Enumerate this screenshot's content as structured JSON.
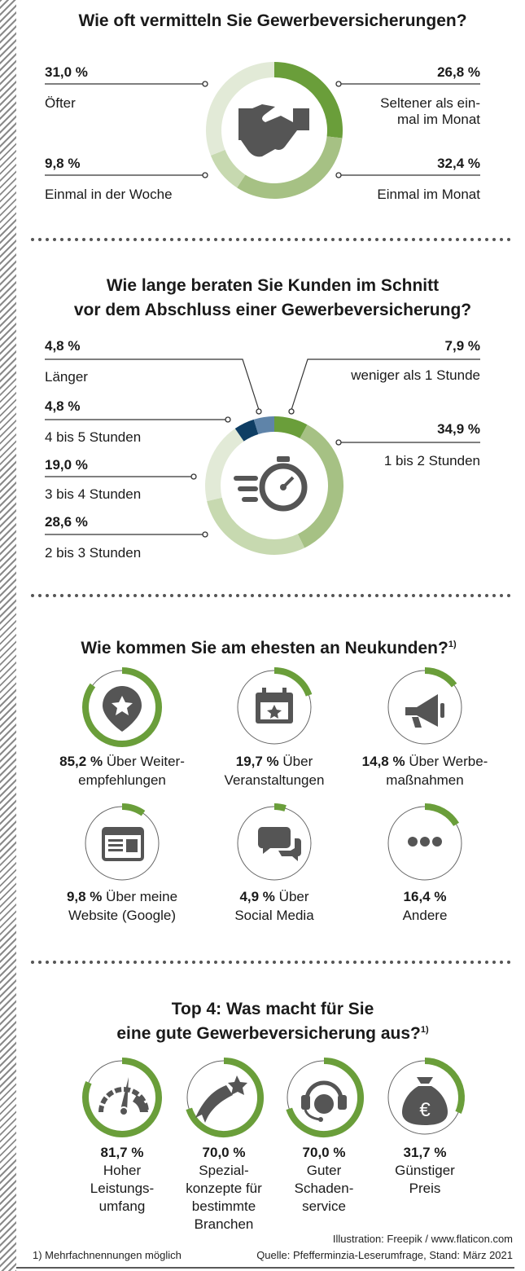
{
  "colors": {
    "green": "#6a9e3a",
    "medium": "#a6c184",
    "light": "#c7d9b0",
    "pale": "#e2ead7",
    "navy": "#0f3e64",
    "steel": "#5f84a9",
    "icon": "#555555"
  },
  "chart_data": [
    {
      "type": "pie",
      "title": "Wie oft vermitteln Sie Gewerbeversicherungen?",
      "segments": [
        {
          "label": "Seltener als ein-mal im Monat",
          "label_lines": [
            "Seltener als ein-",
            "mal im Monat"
          ],
          "value": 26.8,
          "value_text": "26,8 %",
          "color": "#6a9e3a"
        },
        {
          "label": "Einmal im Monat",
          "value": 32.4,
          "value_text": "32,4 %",
          "color": "#a6c184"
        },
        {
          "label": "Einmal in der Woche",
          "value": 9.8,
          "value_text": "9,8 %",
          "color": "#c7d9b0"
        },
        {
          "label": "Öfter",
          "value": 31.0,
          "value_text": "31,0 %",
          "color": "#e2ead7"
        }
      ]
    },
    {
      "type": "pie",
      "title_lines": [
        "Wie lange beraten Sie Kunden im Schnitt",
        "vor dem Abschluss einer Gewerbeversicherung?"
      ],
      "segments": [
        {
          "label": "weniger als 1 Stunde",
          "value": 7.9,
          "value_text": "7,9 %",
          "color": "#6a9e3a"
        },
        {
          "label": "1 bis 2 Stunden",
          "value": 34.9,
          "value_text": "34,9 %",
          "color": "#a6c184"
        },
        {
          "label": "2 bis 3 Stunden",
          "value": 28.6,
          "value_text": "28,6 %",
          "color": "#c7d9b0"
        },
        {
          "label": "3 bis 4 Stunden",
          "value": 19.0,
          "value_text": "19,0 %",
          "color": "#e2ead7"
        },
        {
          "label": "4 bis 5 Stunden",
          "value": 4.8,
          "value_text": "4,8 %",
          "color": "#0f3e64"
        },
        {
          "label": "Länger",
          "value": 4.8,
          "value_text": "4,8 %",
          "color": "#5f84a9"
        }
      ]
    },
    {
      "type": "bar",
      "title": "Wie kommen Sie am ehesten an Neukunden?",
      "title_sup": "1)",
      "items": [
        {
          "icon": "map-pin-star-icon",
          "value": 85.2,
          "value_text": "85,2 %",
          "lines": [
            "Über Weiter-",
            "empfehlungen"
          ]
        },
        {
          "icon": "calendar-star-icon",
          "value": 19.7,
          "value_text": "19,7 %",
          "lines": [
            "Über",
            "Veranstaltungen"
          ]
        },
        {
          "icon": "megaphone-icon",
          "value": 14.8,
          "value_text": "14,8 %",
          "lines": [
            "Über Werbe-",
            "maßnahmen"
          ]
        },
        {
          "icon": "browser-window-icon",
          "value": 9.8,
          "value_text": "9,8 %",
          "lines": [
            "Über meine",
            "Website (Google)"
          ]
        },
        {
          "icon": "chat-bubbles-icon",
          "value": 4.9,
          "value_text": "4,9 %",
          "lines": [
            "Über",
            "Social Media"
          ]
        },
        {
          "icon": "ellipsis-icon",
          "value": 16.4,
          "value_text": "16,4 %",
          "lines": [
            "",
            "Andere"
          ]
        }
      ]
    },
    {
      "type": "bar",
      "title_lines": [
        "Top 4: Was macht für Sie",
        "eine gute Gewerbeversicherung aus?"
      ],
      "title_sup": "1)",
      "items": [
        {
          "icon": "speedometer-icon",
          "value": 81.7,
          "value_text": "81,7 %",
          "lines": [
            "Hoher",
            "Leistungs-",
            "umfang"
          ]
        },
        {
          "icon": "shooting-star-icon",
          "value": 70.0,
          "value_text": "70,0 %",
          "lines": [
            "Spezial-",
            "konzepte für",
            "bestimmte",
            "Branchen"
          ]
        },
        {
          "icon": "headset-icon",
          "value": 70.0,
          "value_text": "70,0 %",
          "lines": [
            "Guter",
            "Schaden-",
            "service"
          ]
        },
        {
          "icon": "money-bag-euro-icon",
          "value": 31.7,
          "value_text": "31,7 %",
          "lines": [
            "Günstiger",
            "Preis"
          ]
        }
      ]
    }
  ],
  "footer": {
    "note": "1) Mehrfachnennungen möglich",
    "credit": "Illustration: Freepik / www.flaticon.com",
    "source": "Quelle: Pfefferminzia-Leserumfrage, Stand: März 2021"
  }
}
